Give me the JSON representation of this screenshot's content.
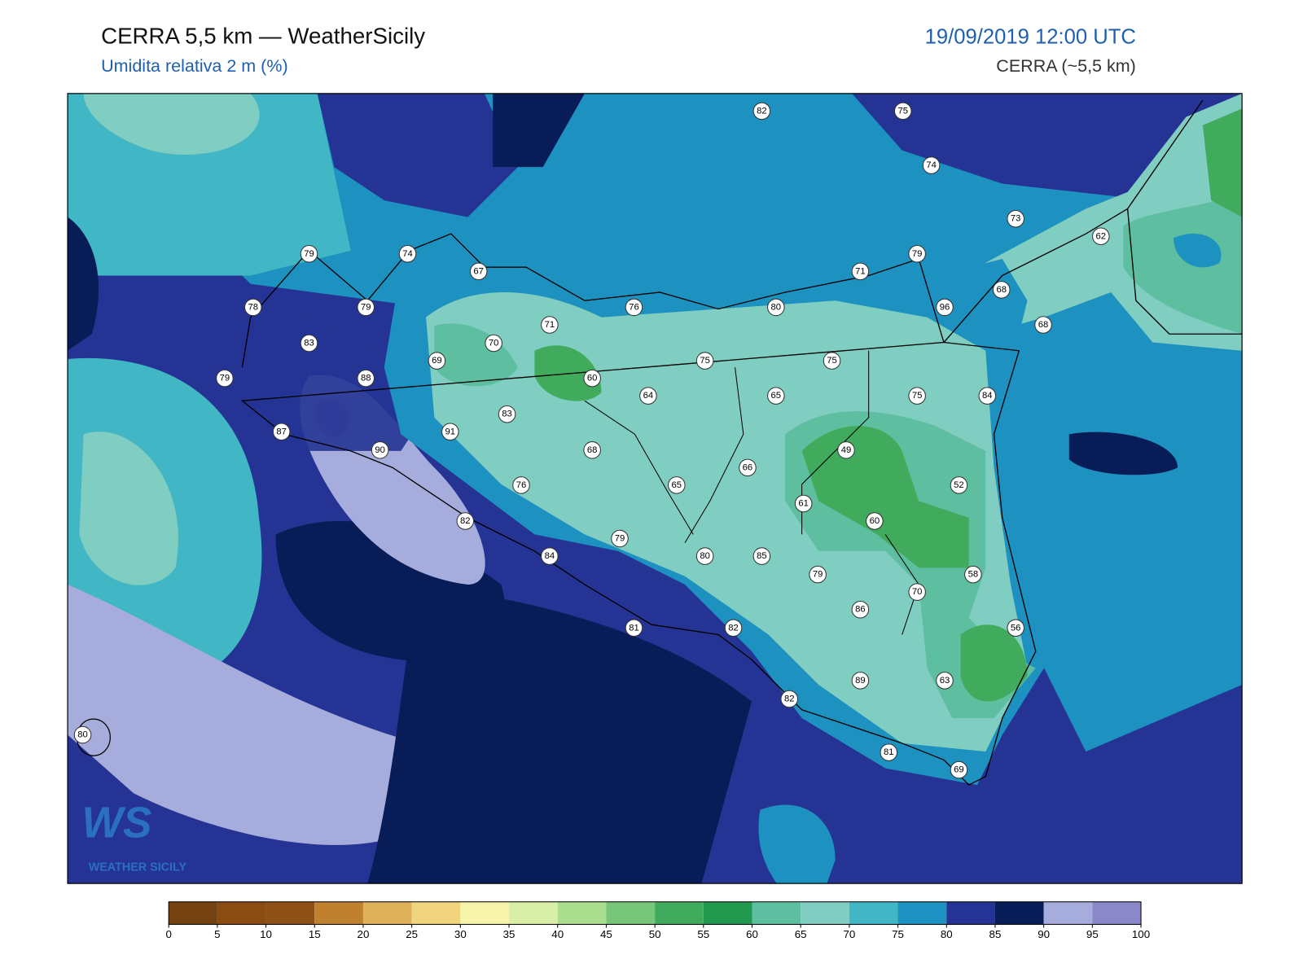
{
  "header": {
    "title": "CERRA 5,5 km — WeatherSicily",
    "subtitle": "Umidita relativa 2 m (%)",
    "datetime": "19/09/2019 12:00 UTC",
    "model": "CERRA (~5,5 km)"
  },
  "map": {
    "stations": [
      82,
      75,
      74,
      73,
      62,
      79,
      74,
      67,
      71,
      79,
      68,
      78,
      79,
      76,
      80,
      96,
      68,
      71,
      83,
      70,
      69,
      75,
      75,
      79,
      88,
      60,
      64,
      65,
      75,
      84,
      83,
      87,
      91,
      90,
      68,
      49,
      66,
      76,
      65,
      52,
      61,
      82,
      60,
      79,
      84,
      80,
      85,
      79,
      58,
      70,
      86,
      81,
      82,
      56,
      89,
      63,
      82,
      80,
      81,
      69
    ]
  },
  "colorbar": {
    "ticks": [
      0,
      5,
      10,
      15,
      20,
      25,
      30,
      35,
      40,
      45,
      50,
      55,
      60,
      65,
      70,
      75,
      80,
      85,
      90,
      95,
      100
    ],
    "colors": [
      "#734210",
      "#8b4c12",
      "#8e5015",
      "#bf812d",
      "#dfb15a",
      "#f0d47e",
      "#f6f4aa",
      "#d9efa7",
      "#aadd8e",
      "#78c679",
      "#41ab5d",
      "#23994f",
      "#5dbfa0",
      "#80cdc1",
      "#41b6c4",
      "#1d91c0",
      "#253494",
      "#081d58",
      "#a6acdb",
      "#8a88c8"
    ]
  },
  "logo": {
    "mark": "WS",
    "name": "WEATHER SICILY"
  }
}
